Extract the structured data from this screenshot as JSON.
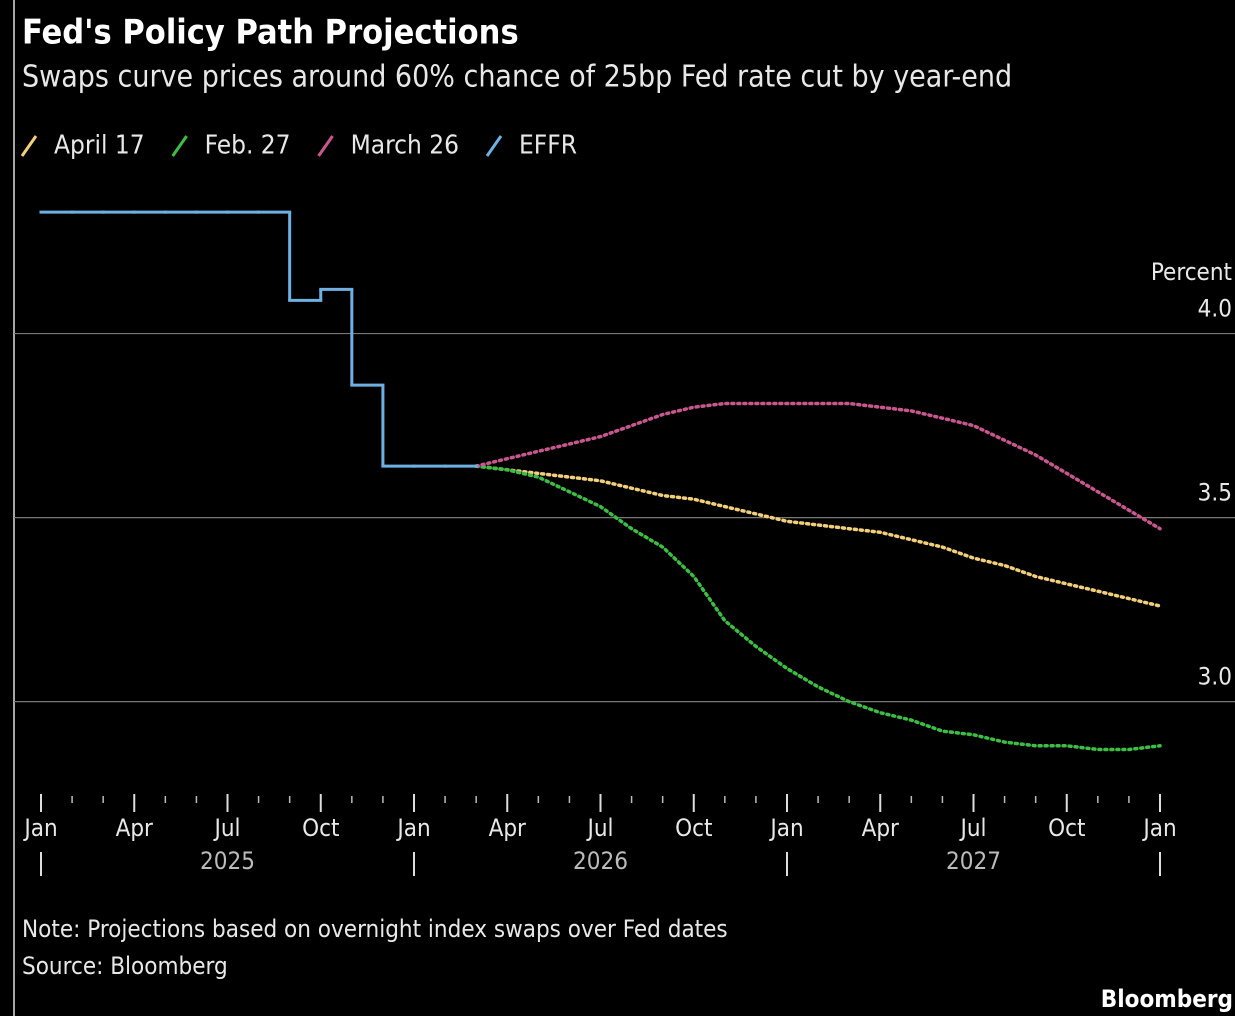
{
  "chart_data": {
    "type": "line",
    "title": "Fed's Policy Path Projections",
    "subtitle": "Swaps curve prices around 60% chance of 25bp Fed rate cut by year-end",
    "y_label": "Percent",
    "note": "Note: Projections based on overnight index swaps over Fed dates",
    "source": "Source: Bloomberg",
    "brand": "Bloomberg",
    "x": [
      "2025-01",
      "2025-02",
      "2025-03",
      "2025-04",
      "2025-05",
      "2025-06",
      "2025-07",
      "2025-08",
      "2025-09",
      "2025-10",
      "2025-11",
      "2025-12",
      "2026-01",
      "2026-02",
      "2026-03",
      "2026-04",
      "2026-05",
      "2026-06",
      "2026-07",
      "2026-08",
      "2026-09",
      "2026-10",
      "2026-11",
      "2026-12",
      "2027-01",
      "2027-02",
      "2027-03",
      "2027-04",
      "2027-05",
      "2027-06",
      "2027-07",
      "2027-08",
      "2027-09",
      "2027-10",
      "2027-11",
      "2027-12",
      "2028-01"
    ],
    "xticks": [
      {
        "value": "2025-01",
        "label": "Jan"
      },
      {
        "value": "2025-04",
        "label": "Apr"
      },
      {
        "value": "2025-07",
        "label": "Jul"
      },
      {
        "value": "2025-10",
        "label": "Oct"
      },
      {
        "value": "2026-01",
        "label": "Jan"
      },
      {
        "value": "2026-04",
        "label": "Apr"
      },
      {
        "value": "2026-07",
        "label": "Jul"
      },
      {
        "value": "2026-10",
        "label": "Oct"
      },
      {
        "value": "2027-01",
        "label": "Jan"
      },
      {
        "value": "2027-04",
        "label": "Apr"
      },
      {
        "value": "2027-07",
        "label": "Jul"
      },
      {
        "value": "2027-10",
        "label": "Oct"
      },
      {
        "value": "2028-01",
        "label": "Jan"
      }
    ],
    "xyears": [
      {
        "value": "2025-07",
        "label": "2025"
      },
      {
        "value": "2026-07",
        "label": "2026"
      },
      {
        "value": "2027-07",
        "label": "2027"
      }
    ],
    "ylim": [
      2.76,
      4.39
    ],
    "yticks": [
      {
        "value": 3,
        "label": "3.0"
      },
      {
        "value": 3.5,
        "label": "3.5"
      },
      {
        "value": 4,
        "label": "4.0"
      }
    ],
    "grid": true,
    "legend": "top-left",
    "series": [
      {
        "name": "April 17",
        "color": "#f2cf7a",
        "line_style": "dotted",
        "values": [
          null,
          null,
          null,
          null,
          null,
          null,
          null,
          null,
          null,
          null,
          null,
          null,
          null,
          null,
          3.64,
          3.63,
          3.62,
          3.61,
          3.6,
          3.58,
          3.56,
          3.55,
          3.53,
          3.51,
          3.49,
          3.48,
          3.47,
          3.46,
          3.44,
          3.42,
          3.39,
          3.37,
          3.34,
          3.32,
          3.3,
          3.28,
          3.26
        ]
      },
      {
        "name": "Feb. 27",
        "color": "#3dbd44",
        "line_style": "dotted",
        "values": [
          null,
          null,
          null,
          null,
          null,
          null,
          null,
          null,
          null,
          null,
          null,
          null,
          null,
          null,
          3.64,
          3.63,
          3.61,
          3.57,
          3.53,
          3.47,
          3.42,
          3.34,
          3.22,
          3.15,
          3.09,
          3.04,
          3.0,
          2.97,
          2.95,
          2.92,
          2.91,
          2.89,
          2.88,
          2.88,
          2.87,
          2.87,
          2.88
        ]
      },
      {
        "name": "March 26",
        "color": "#c9578f",
        "line_style": "dotted",
        "values": [
          null,
          null,
          null,
          null,
          null,
          null,
          null,
          null,
          null,
          null,
          null,
          null,
          null,
          null,
          3.64,
          3.66,
          3.68,
          3.7,
          3.72,
          3.75,
          3.78,
          3.8,
          3.81,
          3.81,
          3.81,
          3.81,
          3.81,
          3.8,
          3.79,
          3.77,
          3.75,
          3.71,
          3.67,
          3.62,
          3.57,
          3.52,
          3.47
        ]
      },
      {
        "name": "EFFR",
        "color": "#6eb0e2",
        "line_style": "step",
        "values": [
          4.33,
          4.33,
          4.33,
          4.33,
          4.33,
          4.33,
          4.33,
          4.33,
          4.09,
          4.12,
          3.86,
          3.64,
          3.64,
          3.64,
          3.64,
          null,
          null,
          null,
          null,
          null,
          null,
          null,
          null,
          null,
          null,
          null,
          null,
          null,
          null,
          null,
          null,
          null,
          null,
          null,
          null,
          null,
          null
        ]
      }
    ]
  }
}
